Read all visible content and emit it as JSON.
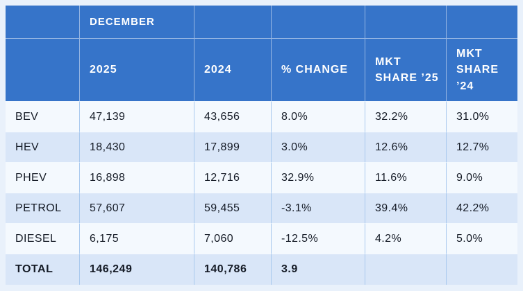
{
  "colors": {
    "page_background": "#e9f1fb",
    "header_background": "#3674c9",
    "header_text": "#ffffff",
    "row_light": "#f4f9fe",
    "row_shaded": "#d9e6f8",
    "body_text": "#151b26",
    "vertical_gridline": "#a9c9ee"
  },
  "chart_data": {
    "type": "table",
    "group_header": "DECEMBER",
    "columns": [
      "",
      "2025",
      "2024",
      "% CHANGE",
      "MKT SHARE ’25",
      "MKT SHARE ’24"
    ],
    "rows": [
      [
        "BEV",
        "47,139",
        "43,656",
        "8.0%",
        "32.2%",
        "31.0%"
      ],
      [
        "HEV",
        "18,430",
        "17,899",
        "3.0%",
        "12.6%",
        "12.7%"
      ],
      [
        "PHEV",
        "16,898",
        "12,716",
        "32.9%",
        "11.6%",
        "9.0%"
      ],
      [
        "PETROL",
        "57,607",
        "59,455",
        "-3.1%",
        "39.4%",
        "42.2%"
      ],
      [
        "DIESEL",
        "6,175",
        "7,060",
        "-12.5%",
        "4.2%",
        "5.0%"
      ],
      [
        "TOTAL",
        "146,249",
        "140,786",
        "3.9",
        "",
        ""
      ]
    ]
  }
}
